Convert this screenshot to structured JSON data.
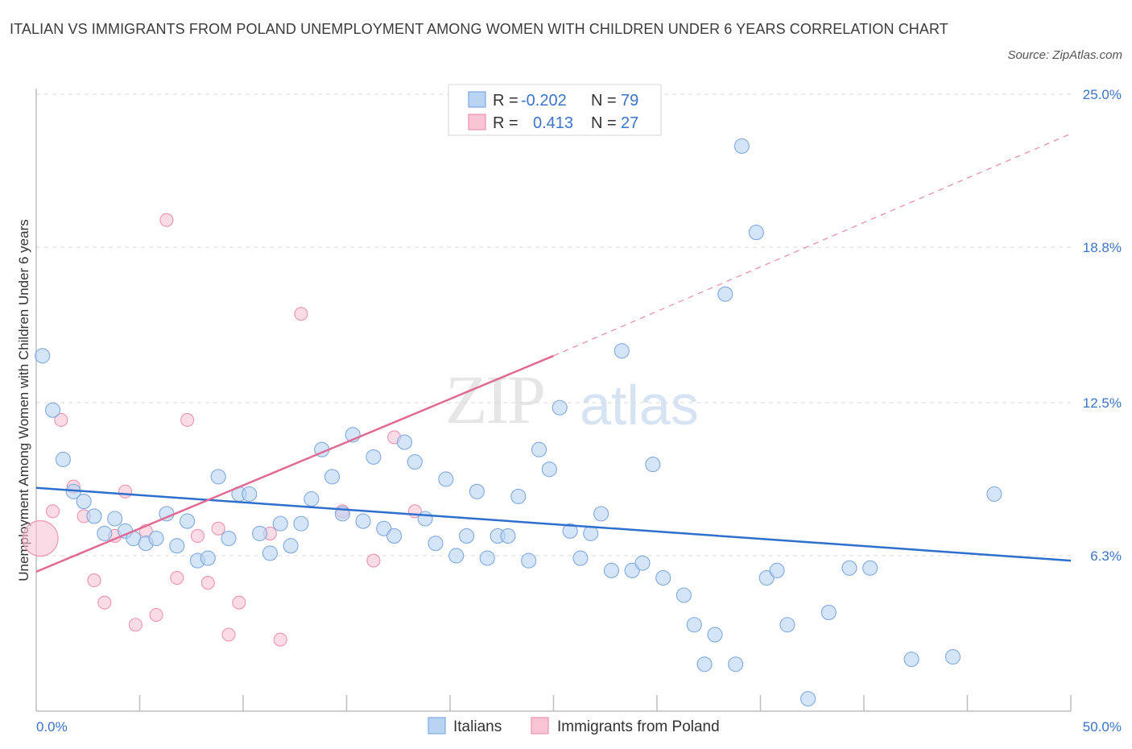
{
  "title": "ITALIAN VS IMMIGRANTS FROM POLAND UNEMPLOYMENT AMONG WOMEN WITH CHILDREN UNDER 6 YEARS CORRELATION CHART",
  "source": "Source: ZipAtlas.com",
  "watermark": {
    "zip": "ZIP",
    "atlas": "atlas"
  },
  "legend": {
    "r_label": "R =",
    "n_label": "N =",
    "italians": {
      "r": "-0.202",
      "n": "79"
    },
    "poland": {
      "r": "0.413",
      "n": "27"
    }
  },
  "colors": {
    "italians_fill": "#b9d3f3",
    "italians_stroke": "#7fa9df",
    "italians_line": "#2e6fce",
    "poland_fill": "#f8c3d3",
    "poland_stroke": "#ec93b1",
    "poland_line": "#e06a93",
    "tick": "#3d73c8",
    "grid": "#d9d9d9"
  },
  "chart_data": {
    "type": "scatter",
    "title": "ITALIAN VS IMMIGRANTS FROM POLAND UNEMPLOYMENT AMONG WOMEN WITH CHILDREN UNDER 6 YEARS CORRELATION CHART",
    "xlabel": "",
    "ylabel": "Unemployment Among Women with Children Under 6 years",
    "xlim": [
      0,
      50
    ],
    "ylim": [
      0,
      25
    ],
    "x_tick_labels": [
      "0.0%",
      "50.0%"
    ],
    "y_ticks": [
      6.3,
      12.5,
      18.8,
      25.0
    ],
    "y_tick_labels": [
      "6.3%",
      "12.5%",
      "18.8%",
      "25.0%"
    ],
    "grid": "horizontal dashed",
    "legend_position": "top-center",
    "series": [
      {
        "name": "Italians",
        "trend": {
          "x": [
            0,
            50
          ],
          "y": [
            9.05,
            6.1
          ]
        },
        "points": [
          [
            0.3,
            14.4
          ],
          [
            0.8,
            12.2
          ],
          [
            1.3,
            10.2
          ],
          [
            1.8,
            8.9
          ],
          [
            2.3,
            8.5
          ],
          [
            2.8,
            7.9
          ],
          [
            3.3,
            7.2
          ],
          [
            3.8,
            7.8
          ],
          [
            4.3,
            7.3
          ],
          [
            4.7,
            7.0
          ],
          [
            5.3,
            6.8
          ],
          [
            5.8,
            7.0
          ],
          [
            6.3,
            8.0
          ],
          [
            6.8,
            6.7
          ],
          [
            7.3,
            7.7
          ],
          [
            7.8,
            6.1
          ],
          [
            8.3,
            6.2
          ],
          [
            8.8,
            9.5
          ],
          [
            9.3,
            7.0
          ],
          [
            9.8,
            8.8
          ],
          [
            10.3,
            8.8
          ],
          [
            10.8,
            7.2
          ],
          [
            11.3,
            6.4
          ],
          [
            11.8,
            7.6
          ],
          [
            12.3,
            6.7
          ],
          [
            12.8,
            7.6
          ],
          [
            13.3,
            8.6
          ],
          [
            13.8,
            10.6
          ],
          [
            14.3,
            9.5
          ],
          [
            14.8,
            8.0
          ],
          [
            15.3,
            11.2
          ],
          [
            15.8,
            7.7
          ],
          [
            16.3,
            10.3
          ],
          [
            16.8,
            7.4
          ],
          [
            17.3,
            7.1
          ],
          [
            17.8,
            10.9
          ],
          [
            18.3,
            10.1
          ],
          [
            18.8,
            7.8
          ],
          [
            19.3,
            6.8
          ],
          [
            19.8,
            9.4
          ],
          [
            20.3,
            6.3
          ],
          [
            20.8,
            7.1
          ],
          [
            21.3,
            8.9
          ],
          [
            21.8,
            6.2
          ],
          [
            22.3,
            7.1
          ],
          [
            22.8,
            7.1
          ],
          [
            23.3,
            8.7
          ],
          [
            23.8,
            6.1
          ],
          [
            24.3,
            10.6
          ],
          [
            24.8,
            9.8
          ],
          [
            25.3,
            12.3
          ],
          [
            25.8,
            7.3
          ],
          [
            26.3,
            6.2
          ],
          [
            26.8,
            7.2
          ],
          [
            27.3,
            8.0
          ],
          [
            27.8,
            5.7
          ],
          [
            28.3,
            14.6
          ],
          [
            28.8,
            5.7
          ],
          [
            29.3,
            6.0
          ],
          [
            29.8,
            10.0
          ],
          [
            30.3,
            5.4
          ],
          [
            31.3,
            4.7
          ],
          [
            31.8,
            3.5
          ],
          [
            32.3,
            1.9
          ],
          [
            32.8,
            3.1
          ],
          [
            33.3,
            16.9
          ],
          [
            33.8,
            1.9
          ],
          [
            34.1,
            22.9
          ],
          [
            34.8,
            19.4
          ],
          [
            35.3,
            5.4
          ],
          [
            35.8,
            5.7
          ],
          [
            36.3,
            3.5
          ],
          [
            37.3,
            0.5
          ],
          [
            38.3,
            4.0
          ],
          [
            39.3,
            5.8
          ],
          [
            40.3,
            5.8
          ],
          [
            42.3,
            2.1
          ],
          [
            44.3,
            2.2
          ],
          [
            46.3,
            8.8
          ]
        ]
      },
      {
        "name": "Immigrants from Poland",
        "trend": {
          "x": [
            0,
            25
          ],
          "y": [
            5.65,
            14.4
          ]
        },
        "trend_extension": {
          "x": [
            25,
            50
          ],
          "y": [
            14.4,
            23.4
          ]
        },
        "points": [
          [
            0.2,
            7.0
          ],
          [
            0.8,
            8.1
          ],
          [
            1.2,
            11.8
          ],
          [
            1.8,
            9.1
          ],
          [
            2.3,
            7.9
          ],
          [
            2.8,
            5.3
          ],
          [
            3.3,
            4.4
          ],
          [
            3.8,
            7.1
          ],
          [
            4.3,
            8.9
          ],
          [
            4.8,
            3.5
          ],
          [
            5.3,
            7.3
          ],
          [
            5.8,
            3.9
          ],
          [
            6.3,
            19.9
          ],
          [
            6.8,
            5.4
          ],
          [
            7.3,
            11.8
          ],
          [
            7.8,
            7.1
          ],
          [
            8.3,
            5.2
          ],
          [
            8.8,
            7.4
          ],
          [
            9.3,
            3.1
          ],
          [
            9.8,
            4.4
          ],
          [
            11.3,
            7.2
          ],
          [
            11.8,
            2.9
          ],
          [
            12.8,
            16.1
          ],
          [
            14.8,
            8.1
          ],
          [
            16.3,
            6.1
          ],
          [
            17.3,
            11.1
          ],
          [
            18.3,
            8.1
          ]
        ]
      }
    ]
  }
}
